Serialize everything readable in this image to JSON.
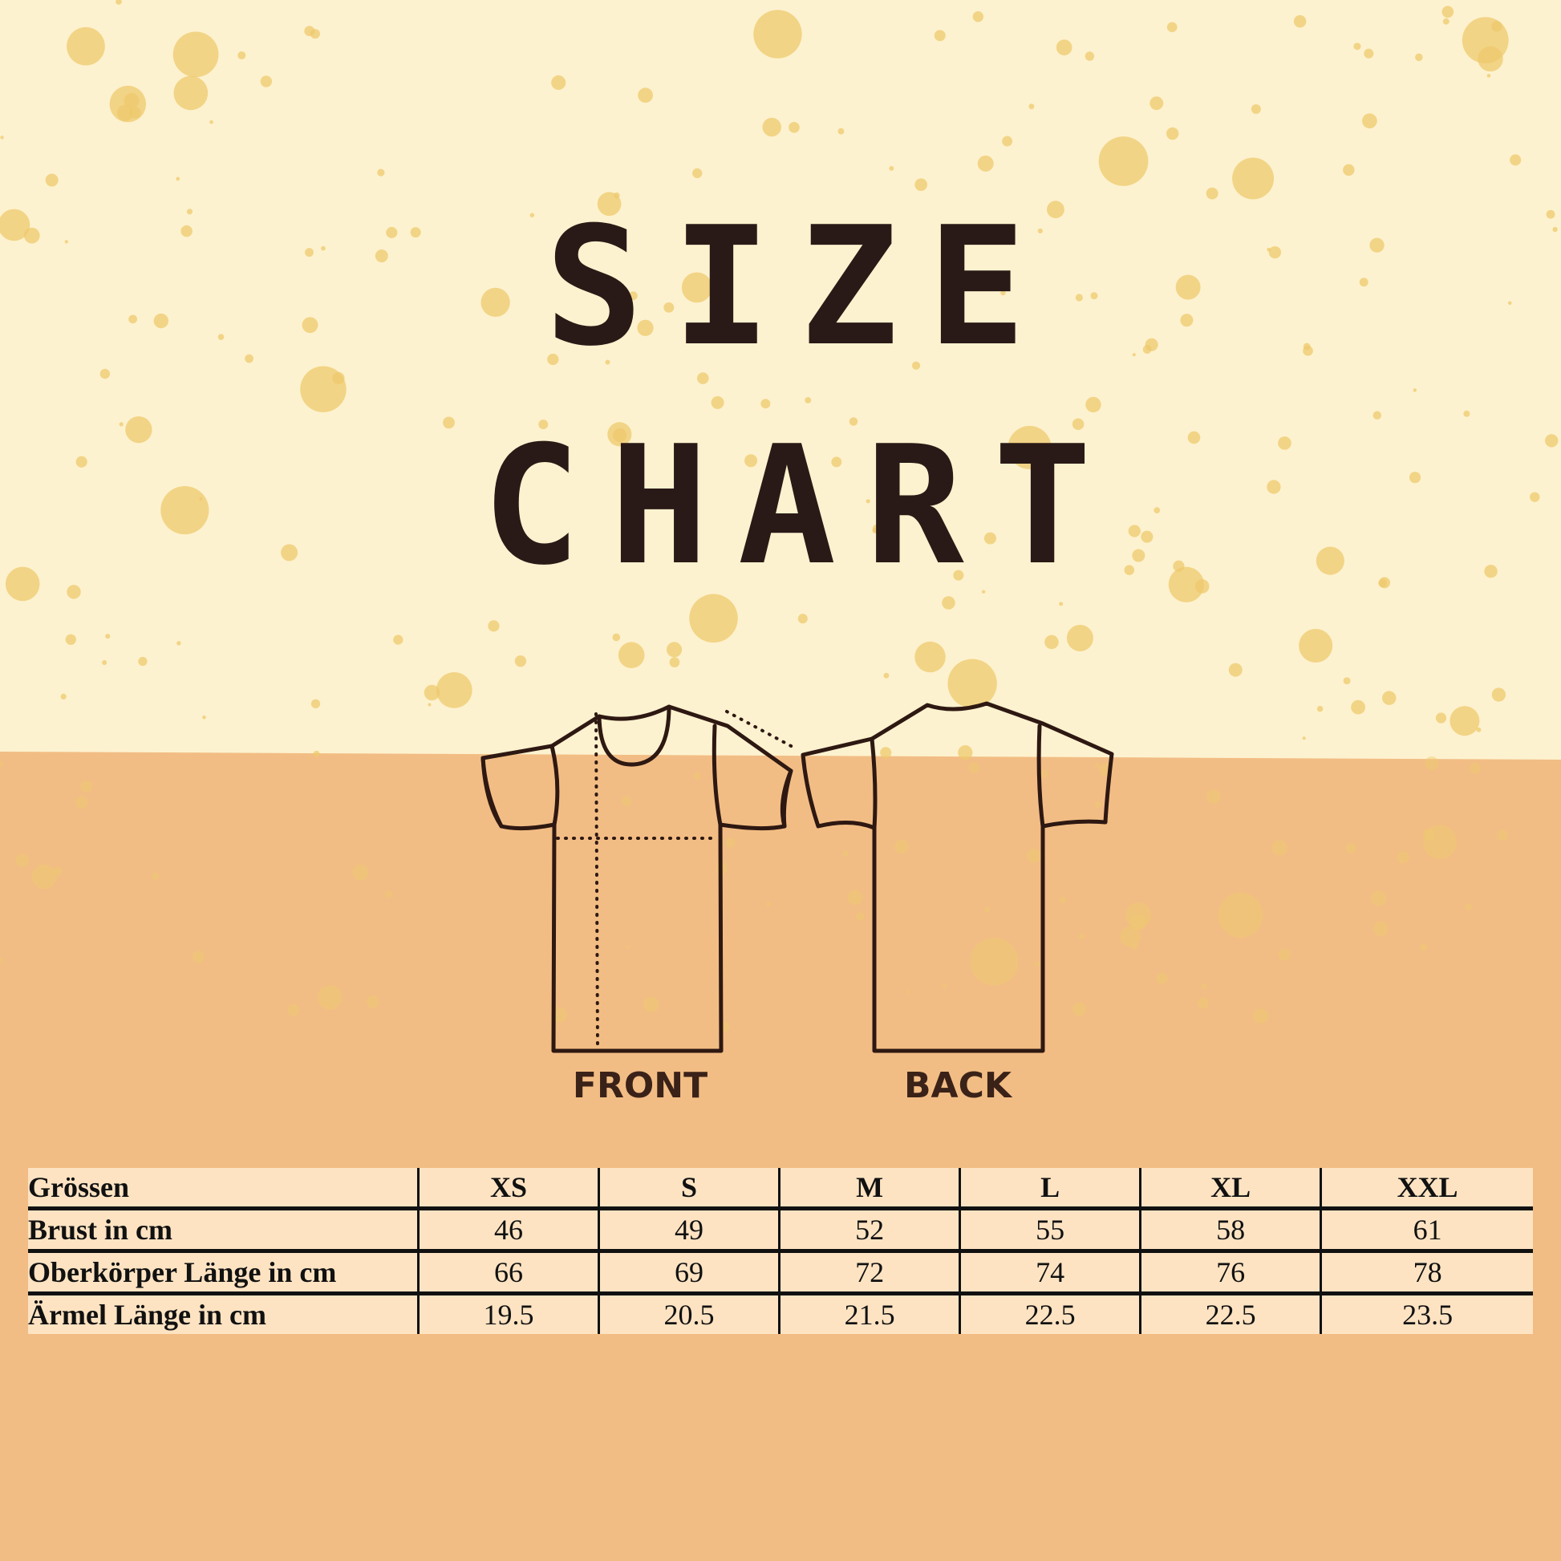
{
  "title": {
    "line1": "SIZE",
    "line2": "CHART"
  },
  "colors": {
    "top_background": "#fdf2cf",
    "bottom_background": "#f2bd84",
    "splatter": "#eec96e",
    "ink": "#2e1812",
    "table_background": "#fde3c2"
  },
  "illustrations": {
    "front_label": "FRONT",
    "back_label": "BACK"
  },
  "table": {
    "header": [
      "Grössen",
      "XS",
      "S",
      "M",
      "L",
      "XL",
      "XXL"
    ],
    "rows": [
      [
        "Brust in cm",
        "46",
        "49",
        "52",
        "55",
        "58",
        "61"
      ],
      [
        "Oberkörper Länge in cm",
        "66",
        "69",
        "72",
        "74",
        "76",
        "78"
      ],
      [
        "Ärmel Länge in cm",
        "19.5",
        "20.5",
        "21.5",
        "22.5",
        "22.5",
        "23.5"
      ]
    ]
  }
}
